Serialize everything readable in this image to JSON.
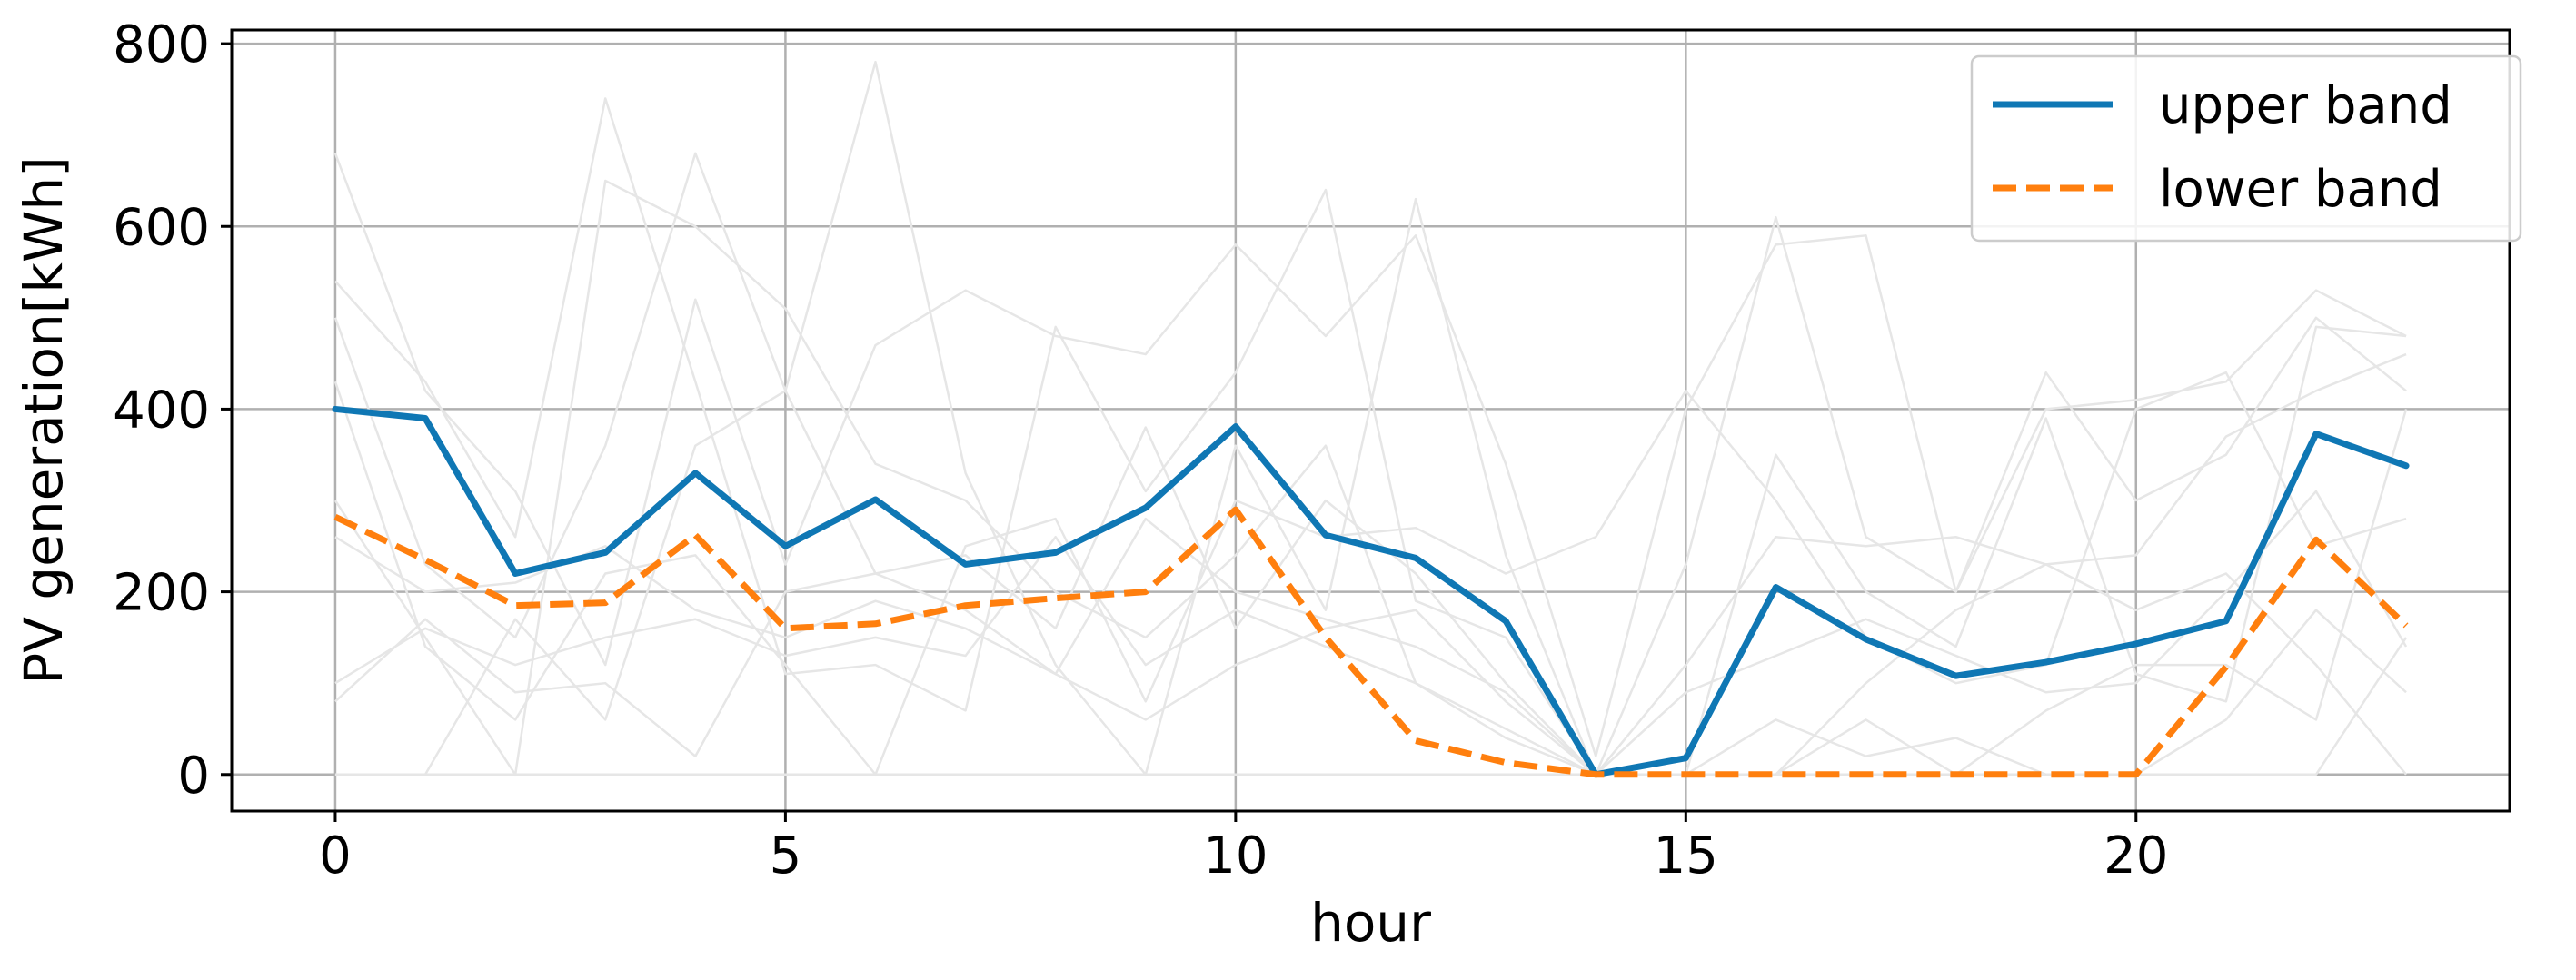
{
  "chart_data": {
    "type": "line",
    "xlabel": "hour",
    "ylabel": "PV generation[kWh]",
    "xlim": [
      -1.15,
      24.15
    ],
    "ylim": [
      -40,
      815
    ],
    "xticks": [
      0,
      5,
      10,
      15,
      20
    ],
    "yticks": [
      0,
      200,
      400,
      600,
      800
    ],
    "x_tick_labels": [
      "0",
      "5",
      "10",
      "15",
      "20"
    ],
    "y_tick_labels": [
      "0",
      "200",
      "400",
      "600",
      "800"
    ],
    "grid": true,
    "legend_position": "top-right",
    "x": [
      0,
      1,
      2,
      3,
      4,
      5,
      6,
      7,
      8,
      9,
      10,
      11,
      12,
      13,
      14,
      15,
      16,
      17,
      18,
      19,
      20,
      21,
      22,
      23
    ],
    "series": [
      {
        "name": "upper band",
        "color": "#0f77b4",
        "style": "solid",
        "values": [
          400,
          390,
          220,
          243,
          330,
          250,
          301,
          230,
          243,
          292,
          381,
          262,
          237,
          168,
          0,
          18,
          205,
          148,
          108,
          123,
          143,
          168,
          373,
          338
        ]
      },
      {
        "name": "lower band",
        "color": "#ff7f0e",
        "style": "dashed",
        "values": [
          282,
          235,
          185,
          188,
          262,
          160,
          165,
          185,
          193,
          200,
          290,
          150,
          37,
          13,
          0,
          0,
          0,
          0,
          0,
          0,
          0,
          118,
          257,
          163
        ]
      }
    ],
    "background_series_color": "#e6e6e6",
    "background_series": [
      {
        "values": [
          680,
          420,
          310,
          120,
          520,
          230,
          470,
          530,
          480,
          460,
          580,
          480,
          590,
          340,
          20,
          400,
          580,
          590,
          200,
          400,
          410,
          430,
          530,
          480
        ]
      },
      {
        "values": [
          540,
          430,
          260,
          740,
          430,
          110,
          120,
          70,
          490,
          310,
          440,
          640,
          190,
          150,
          0,
          230,
          610,
          260,
          200,
          440,
          300,
          350,
          500,
          420
        ]
      },
      {
        "values": [
          500,
          230,
          150,
          360,
          680,
          420,
          780,
          330,
          120,
          0,
          360,
          180,
          630,
          240,
          0,
          0,
          350,
          200,
          140,
          390,
          110,
          80,
          490,
          480
        ]
      },
      {
        "values": [
          300,
          150,
          0,
          650,
          600,
          510,
          340,
          300,
          200,
          150,
          240,
          360,
          100,
          50,
          0,
          120,
          260,
          250,
          260,
          230,
          240,
          370,
          420,
          460
        ]
      },
      {
        "values": [
          430,
          140,
          60,
          220,
          240,
          120,
          0,
          250,
          280,
          80,
          300,
          260,
          270,
          220,
          260,
          420,
          300,
          150,
          100,
          120,
          400,
          440,
          250,
          280
        ]
      },
      {
        "values": [
          260,
          200,
          210,
          250,
          180,
          150,
          190,
          160,
          110,
          280,
          200,
          170,
          140,
          90,
          0,
          90,
          130,
          170,
          130,
          90,
          100,
          200,
          310,
          140
        ]
      },
      {
        "values": [
          100,
          160,
          120,
          150,
          170,
          130,
          150,
          130,
          260,
          120,
          180,
          140,
          100,
          40,
          0,
          0,
          60,
          20,
          40,
          0,
          0,
          60,
          180,
          90
        ]
      },
      {
        "values": [
          0,
          0,
          170,
          60,
          360,
          420,
          220,
          240,
          160,
          380,
          160,
          300,
          220,
          100,
          0,
          0,
          0,
          100,
          180,
          230,
          180,
          220,
          120,
          0
        ]
      },
      {
        "values": [
          80,
          170,
          90,
          100,
          20,
          200,
          220,
          180,
          110,
          60,
          120,
          160,
          180,
          80,
          0,
          0,
          0,
          60,
          0,
          70,
          120,
          120,
          60,
          400
        ]
      },
      {
        "values": [
          0,
          0,
          0,
          0,
          0,
          0,
          0,
          0,
          0,
          0,
          0,
          0,
          0,
          0,
          0,
          0,
          0,
          0,
          0,
          0,
          0,
          0,
          0,
          150
        ]
      }
    ]
  }
}
